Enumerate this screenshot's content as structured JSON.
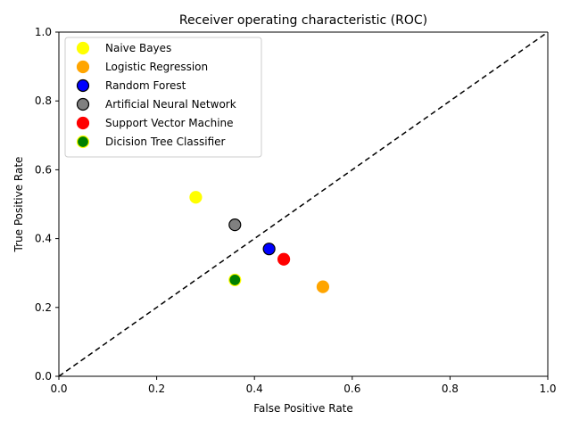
{
  "chart_data": {
    "type": "scatter",
    "title": "Receiver operating characteristic (ROC)",
    "xlabel": "False Positive Rate",
    "ylabel": "True Positive Rate",
    "xlim": [
      0.0,
      1.0
    ],
    "ylim": [
      0.0,
      1.0
    ],
    "xticks": [
      "0.0",
      "0.2",
      "0.4",
      "0.6",
      "0.8",
      "1.0"
    ],
    "yticks": [
      "0.0",
      "0.2",
      "0.4",
      "0.6",
      "0.8",
      "1.0"
    ],
    "grid": false,
    "legend_position": "top-left",
    "reference_line": {
      "style": "dashed",
      "color": "#000000",
      "from": [
        0,
        0
      ],
      "to": [
        1,
        1
      ]
    },
    "series": [
      {
        "name": "Naive Bayes",
        "x": 0.28,
        "y": 0.52,
        "color": "#ffff00",
        "edge": "#ffff00"
      },
      {
        "name": "Logistic Regression",
        "x": 0.54,
        "y": 0.26,
        "color": "#ffa500",
        "edge": "#ffa500"
      },
      {
        "name": "Random Forest",
        "x": 0.43,
        "y": 0.37,
        "color": "#0000ff",
        "edge": "#000000"
      },
      {
        "name": "Artificial Neural Network",
        "x": 0.36,
        "y": 0.44,
        "color": "#808080",
        "edge": "#000000"
      },
      {
        "name": "Support Vector Machine",
        "x": 0.46,
        "y": 0.34,
        "color": "#ff0000",
        "edge": "#ff0000"
      },
      {
        "name": "Dicision Tree Classifier",
        "x": 0.36,
        "y": 0.28,
        "color": "#008000",
        "edge": "#ffff00"
      }
    ]
  }
}
